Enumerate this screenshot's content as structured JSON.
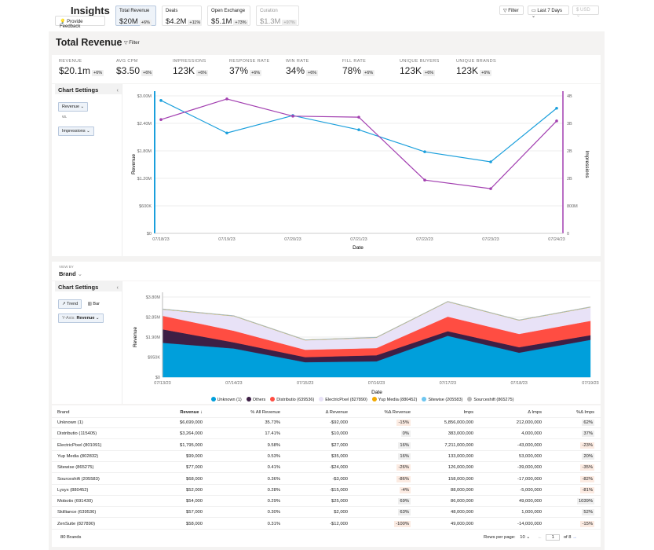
{
  "header": {
    "title": "Insights",
    "feedback_label": "Provide Feedback",
    "tabs": [
      {
        "label": "Total Revenue",
        "value": "$20M",
        "delta": "+6%"
      },
      {
        "label": "Deals",
        "value": "$4.2M",
        "delta": "+11%"
      },
      {
        "label": "Open Exchange",
        "value": "$5.1M",
        "delta": "+73%"
      },
      {
        "label": "Curation",
        "value": "$1.3M",
        "delta": "+97%"
      }
    ],
    "filter_label": "Filter",
    "date_range": "Last 7 Days",
    "currency": "$ USD"
  },
  "section": {
    "title": "Total Revenue",
    "filter_label": "Filter"
  },
  "kpis": [
    {
      "label": "REVENUE",
      "value": "$20.1m",
      "delta": "+6%"
    },
    {
      "label": "AVG CPM",
      "value": "$3.50",
      "delta": "+6%"
    },
    {
      "label": "IMPRESSIONS",
      "value": "123K",
      "delta": "+6%"
    },
    {
      "label": "RESPONSE RATE",
      "value": "37%",
      "delta": "+6%"
    },
    {
      "label": "WIN RATE",
      "value": "34%",
      "delta": "+6%"
    },
    {
      "label": "FILL RATE",
      "value": "78%",
      "delta": "+6%"
    },
    {
      "label": "UNIQUE BUYERS",
      "value": "123K",
      "delta": "+6%"
    },
    {
      "label": "UNIQUE BRANDS",
      "value": "123K",
      "delta": "+6%"
    }
  ],
  "settings1": {
    "title": "Chart Settings",
    "metric1": "Revenue",
    "vs": "vs.",
    "metric2": "Impressions"
  },
  "view_by": {
    "label": "VIEW BY",
    "value": "Brand"
  },
  "settings2": {
    "title": "Chart Settings",
    "trend": "Trend",
    "bar": "Bar",
    "yaxis_label": "Y-Axis:",
    "yaxis_value": "Revenue"
  },
  "chart_data": [
    {
      "type": "line",
      "x": [
        "07/18/23",
        "07/19/23",
        "07/20/23",
        "07/21/23",
        "07/22/23",
        "07/23/23",
        "07/24/23"
      ],
      "xlabel": "Date",
      "ylabel": "Revenue",
      "y2label": "Impressions",
      "yticks": [
        "$0",
        "$600K",
        "$1.20M",
        "$1.80M",
        "$2.40M",
        "$3.00M"
      ],
      "ylim": [
        0,
        3000000
      ],
      "y2ticks": [
        "0",
        "800M",
        "2B",
        "2B",
        "3B",
        "4B"
      ],
      "y2lim": [
        0,
        4000000000
      ],
      "series": [
        {
          "name": "Revenue",
          "axis": "left",
          "color": "#1a9fdc",
          "values": [
            2900000,
            2190000,
            2570000,
            2260000,
            1780000,
            1560000,
            2730000
          ]
        },
        {
          "name": "Impressions",
          "axis": "right",
          "color": "#a23fb0",
          "values": [
            3310000000,
            3910000000,
            3410000000,
            3380000000,
            1550000000,
            1300000000,
            3270000000
          ]
        }
      ],
      "grid": true
    },
    {
      "type": "area",
      "stacked": true,
      "x": [
        "07/13/23",
        "07/14/23",
        "07/15/23",
        "07/16/23",
        "07/17/23",
        "07/18/23",
        "07/19/23"
      ],
      "xlabel": "Date",
      "ylabel": "Revenue",
      "yticks": [
        "$0",
        "$950K",
        "$1.90M",
        "$2.85M",
        "$3.80M"
      ],
      "ylim": [
        0,
        3800000
      ],
      "legend": "bottom",
      "series": [
        {
          "name": "Unknown (1)",
          "color": "#009fdb",
          "values": [
            1630000,
            1360000,
            710000,
            750000,
            1960000,
            1160000,
            1770000
          ]
        },
        {
          "name": "Others",
          "color": "#3d1f45",
          "values": [
            640000,
            290000,
            240000,
            290000,
            220000,
            260000,
            220000
          ]
        },
        {
          "name": "Distributio (639536)",
          "color": "#ff4d42",
          "values": [
            640000,
            550000,
            350000,
            340000,
            690000,
            630000,
            680000
          ]
        },
        {
          "name": "ElectricPixel (827890)",
          "color": "#e8e2f7",
          "values": [
            300000,
            690000,
            450000,
            490000,
            700000,
            640000,
            640000
          ]
        },
        {
          "name": "Yup Media (880452)",
          "color": "#f2a900",
          "values": [
            10000,
            10000,
            10000,
            10000,
            10000,
            10000,
            10000
          ]
        },
        {
          "name": "Sitewise (205583)",
          "color": "#6ec6f0",
          "values": [
            10000,
            10000,
            10000,
            10000,
            10000,
            10000,
            10000
          ]
        },
        {
          "name": "Sourceshift (865275)",
          "color": "#b8b8b8",
          "values": [
            10000,
            10000,
            10000,
            10000,
            10000,
            10000,
            10000
          ]
        }
      ]
    }
  ],
  "table": {
    "columns": [
      "Brand",
      "Revenue",
      "% All Revenue",
      "Δ Revenue",
      "%Δ Revenue",
      "Imps",
      "Δ Imps",
      "%Δ Imps"
    ],
    "rows": [
      [
        "Unknown (1)",
        "$6,699,000",
        "35.73%",
        "-$92,000",
        "-15%",
        "5,856,000,000",
        "212,000,000",
        "62%"
      ],
      [
        "Distributio (115405)",
        "$3,264,000",
        "17.41%",
        "$10,000",
        "0%",
        "383,000,000",
        "4,000,000",
        "37%"
      ],
      [
        "ElectricPixel (801091)",
        "$1,795,000",
        "9.58%",
        "$27,000",
        "16%",
        "7,211,000,000",
        "-43,000,000",
        "-23%"
      ],
      [
        "Yup Media (802832)",
        "$99,000",
        "0.53%",
        "$35,000",
        "16%",
        "133,000,000",
        "53,000,000",
        "20%"
      ],
      [
        "Sitewise (865275)",
        "$77,000",
        "0.41%",
        "-$24,000",
        "-26%",
        "126,000,000",
        "-39,000,000",
        "-35%"
      ],
      [
        "Sourceshift (205583)",
        "$68,000",
        "0.36%",
        "-$3,000",
        "-86%",
        "158,000,000",
        "-17,000,000",
        "-82%"
      ],
      [
        "Lysyx (880452)",
        "$52,000",
        "0.28%",
        "-$15,000",
        "-4%",
        "88,000,000",
        "-5,000,000",
        "-81%"
      ],
      [
        "Mobotix (691430)",
        "$54,000",
        "0.29%",
        "$25,000",
        "69%",
        "86,000,000",
        "49,000,000",
        "1039%"
      ],
      [
        "Skilliance (639536)",
        "$57,000",
        "0.30%",
        "$2,000",
        "63%",
        "48,000,000",
        "1,000,000",
        "52%"
      ],
      [
        "ZenSuite (827890)",
        "$58,000",
        "0.31%",
        "-$12,000",
        "-100%",
        "49,000,000",
        "-14,000,000",
        "-15%"
      ]
    ],
    "footer": {
      "count": "80 Brands",
      "rows_per_page_label": "Rows per page:",
      "rows_per_page": "10",
      "page": "1",
      "of_pages": "of 8"
    }
  }
}
